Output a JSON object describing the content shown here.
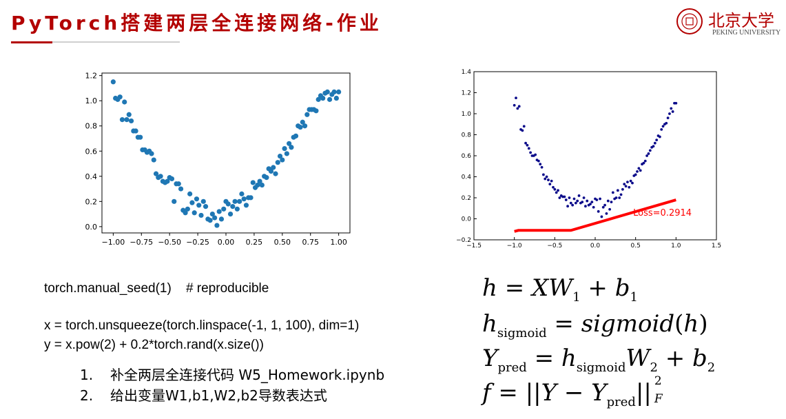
{
  "slide": {
    "title": "PyTorch搭建两层全连接网络-作业",
    "logo_cn": "北京大学",
    "logo_en": "PEKING UNIVERSITY"
  },
  "code": {
    "line1": "torch.manual_seed(1)    # reproducible",
    "line2": "x = torch.unsqueeze(torch.linspace(-1, 1, 100), dim=1)",
    "line3": "y = x.pow(2) + 0.2*torch.rand(x.size())"
  },
  "tasks": [
    {
      "num": "1.",
      "text": "补全两层全连接代码 W5_Homework.ipynb"
    },
    {
      "num": "2.",
      "text": "给出变量W1,b1,W2,b2导数表达式"
    }
  ],
  "formulas": {
    "f1_lhs": "h",
    "f1_rhs": "XW",
    "f1_sub1": "1",
    "f1_b": "b",
    "f1_sub2": "1",
    "f2_lhs": "h",
    "f2_lhs_sub": "sigmoid",
    "f2_fn": "sigmoid",
    "f2_arg": "h",
    "f3_lhs": "Y",
    "f3_lhs_sub": "pred",
    "f3_h": "h",
    "f3_h_sub": "sigmoid",
    "f3_W": "W",
    "f3_W_sub": "2",
    "f3_b": "b",
    "f3_b_sub": "2",
    "f4_lhs": "f",
    "f4_Y": "Y",
    "f4_Y2": "Y",
    "f4_Y2_sub": "pred",
    "f4_sup": "2",
    "f4_sub": "F"
  },
  "chart_data": [
    {
      "type": "scatter",
      "title": "",
      "xlabel": "",
      "ylabel": "",
      "xlim": [
        -1.1,
        1.1
      ],
      "ylim": [
        -0.05,
        1.22
      ],
      "xticks": [
        "−1.00",
        "−0.75",
        "−0.50",
        "−0.25",
        "0.00",
        "0.25",
        "0.50",
        "0.75",
        "1.00"
      ],
      "xtick_values": [
        -1.0,
        -0.75,
        -0.5,
        -0.25,
        0.0,
        0.25,
        0.5,
        0.75,
        1.0
      ],
      "yticks": [
        "0.0",
        "0.2",
        "0.4",
        "0.6",
        "0.8",
        "1.0",
        "1.2"
      ],
      "ytick_values": [
        0.0,
        0.2,
        0.4,
        0.6,
        0.8,
        1.0,
        1.2
      ],
      "color": "#1f77b4",
      "series": [
        {
          "x": [
            -1.0,
            -0.98,
            -0.96,
            -0.94,
            -0.92,
            -0.9,
            -0.88,
            -0.86,
            -0.84,
            -0.82,
            -0.8,
            -0.78,
            -0.76,
            -0.74,
            -0.72,
            -0.7,
            -0.68,
            -0.66,
            -0.64,
            -0.62,
            -0.6,
            -0.58,
            -0.56,
            -0.54,
            -0.52,
            -0.5,
            -0.48,
            -0.46,
            -0.44,
            -0.42,
            -0.4,
            -0.38,
            -0.36,
            -0.34,
            -0.32,
            -0.3,
            -0.28,
            -0.26,
            -0.24,
            -0.22,
            -0.2,
            -0.18,
            -0.16,
            -0.14,
            -0.12,
            -0.1,
            -0.08,
            -0.06,
            -0.04,
            -0.02,
            0.0,
            0.02,
            0.04,
            0.06,
            0.08,
            0.1,
            0.12,
            0.14,
            0.16,
            0.18,
            0.2,
            0.22,
            0.24,
            0.26,
            0.28,
            0.3,
            0.32,
            0.34,
            0.36,
            0.38,
            0.4,
            0.42,
            0.44,
            0.46,
            0.48,
            0.5,
            0.52,
            0.54,
            0.56,
            0.58,
            0.6,
            0.62,
            0.64,
            0.66,
            0.68,
            0.7,
            0.72,
            0.74,
            0.76,
            0.78,
            0.8,
            0.82,
            0.84,
            0.86,
            0.88,
            0.9,
            0.92,
            0.94,
            0.96,
            0.98,
            1.0
          ],
          "y": [
            1.15,
            1.02,
            1.01,
            1.03,
            0.85,
            0.99,
            0.85,
            0.89,
            0.84,
            0.76,
            0.76,
            0.71,
            0.71,
            0.61,
            0.61,
            0.59,
            0.6,
            0.58,
            0.53,
            0.42,
            0.39,
            0.4,
            0.36,
            0.35,
            0.36,
            0.39,
            0.38,
            0.2,
            0.34,
            0.34,
            0.3,
            0.13,
            0.11,
            0.14,
            0.26,
            0.19,
            0.11,
            0.22,
            0.17,
            0.09,
            0.2,
            0.16,
            0.06,
            0.05,
            0.1,
            0.07,
            0.01,
            0.12,
            0.06,
            0.14,
            0.2,
            0.18,
            0.1,
            0.16,
            0.2,
            0.14,
            0.2,
            0.26,
            0.22,
            0.17,
            0.23,
            0.23,
            0.35,
            0.31,
            0.33,
            0.36,
            0.33,
            0.4,
            0.39,
            0.46,
            0.44,
            0.47,
            0.42,
            0.51,
            0.56,
            0.53,
            0.62,
            0.58,
            0.66,
            0.63,
            0.71,
            0.72,
            0.8,
            0.79,
            0.83,
            0.8,
            0.89,
            0.93,
            0.93,
            0.93,
            0.92,
            1.01,
            1.04,
            1.02,
            1.06,
            1.07,
            1.01,
            1.05,
            1.07,
            1.02,
            1.07
          ]
        }
      ]
    },
    {
      "type": "scatter",
      "title": "",
      "xlabel": "",
      "ylabel": "",
      "xlim": [
        -1.5,
        1.5
      ],
      "ylim": [
        -0.2,
        1.4
      ],
      "xticks": [
        "−1.5",
        "−1.0",
        "−0.5",
        "0.0",
        "0.5",
        "1.0",
        "1.5"
      ],
      "xtick_values": [
        -1.5,
        -1.0,
        -0.5,
        0.0,
        0.5,
        1.0,
        1.5
      ],
      "yticks": [
        "−0.2",
        "0.0",
        "0.2",
        "0.4",
        "0.6",
        "0.8",
        "1.0",
        "1.2",
        "1.4"
      ],
      "ytick_values": [
        -0.2,
        0.0,
        0.2,
        0.4,
        0.6,
        0.8,
        1.0,
        1.2,
        1.4
      ],
      "point_color": "#0b0b8a",
      "line_color": "#ff0000",
      "annotation": "Loss=0.2914",
      "annotation_color": "#ff0000",
      "annotation_pos": [
        0.47,
        0.03
      ],
      "points": {
        "x": [
          -1.0,
          -0.98,
          -0.96,
          -0.94,
          -0.92,
          -0.9,
          -0.88,
          -0.86,
          -0.84,
          -0.82,
          -0.8,
          -0.78,
          -0.76,
          -0.74,
          -0.72,
          -0.7,
          -0.68,
          -0.66,
          -0.64,
          -0.62,
          -0.6,
          -0.58,
          -0.56,
          -0.54,
          -0.52,
          -0.5,
          -0.48,
          -0.46,
          -0.44,
          -0.42,
          -0.4,
          -0.38,
          -0.36,
          -0.34,
          -0.32,
          -0.3,
          -0.28,
          -0.26,
          -0.24,
          -0.22,
          -0.2,
          -0.18,
          -0.16,
          -0.14,
          -0.12,
          -0.1,
          -0.08,
          -0.06,
          -0.04,
          -0.02,
          0.0,
          0.02,
          0.04,
          0.06,
          0.08,
          0.1,
          0.12,
          0.14,
          0.16,
          0.18,
          0.2,
          0.22,
          0.24,
          0.26,
          0.28,
          0.3,
          0.32,
          0.34,
          0.36,
          0.38,
          0.4,
          0.42,
          0.44,
          0.46,
          0.48,
          0.5,
          0.52,
          0.54,
          0.56,
          0.58,
          0.6,
          0.62,
          0.64,
          0.66,
          0.68,
          0.7,
          0.72,
          0.74,
          0.76,
          0.78,
          0.8,
          0.82,
          0.84,
          0.86,
          0.88,
          0.9,
          0.92,
          0.94,
          0.96,
          0.98,
          1.0
        ],
        "y": [
          1.08,
          1.15,
          1.05,
          1.07,
          0.85,
          0.84,
          0.88,
          0.72,
          0.7,
          0.67,
          0.63,
          0.6,
          0.6,
          0.61,
          0.56,
          0.55,
          0.52,
          0.49,
          0.42,
          0.38,
          0.4,
          0.37,
          0.33,
          0.36,
          0.3,
          0.28,
          0.25,
          0.27,
          0.2,
          0.22,
          0.21,
          0.21,
          0.18,
          0.12,
          0.2,
          0.15,
          0.13,
          0.19,
          0.15,
          0.17,
          0.22,
          0.15,
          0.16,
          0.2,
          0.12,
          0.17,
          0.13,
          0.14,
          0.16,
          0.11,
          0.19,
          0.18,
          0.07,
          0.19,
          0.02,
          0.11,
          0.13,
          0.05,
          0.17,
          0.09,
          0.16,
          0.25,
          0.19,
          0.2,
          0.27,
          0.2,
          0.23,
          0.28,
          0.33,
          0.31,
          0.35,
          0.3,
          0.36,
          0.34,
          0.41,
          0.42,
          0.45,
          0.48,
          0.46,
          0.52,
          0.53,
          0.55,
          0.6,
          0.62,
          0.65,
          0.68,
          0.69,
          0.72,
          0.75,
          0.79,
          0.78,
          0.85,
          0.88,
          0.9,
          0.91,
          0.96,
          1.0,
          1.05,
          1.02,
          1.1,
          1.1
        ]
      },
      "line": {
        "x": [
          -1.0,
          -0.95,
          -0.3,
          1.0
        ],
        "y": [
          -0.12,
          -0.11,
          -0.11,
          0.18
        ]
      }
    }
  ]
}
